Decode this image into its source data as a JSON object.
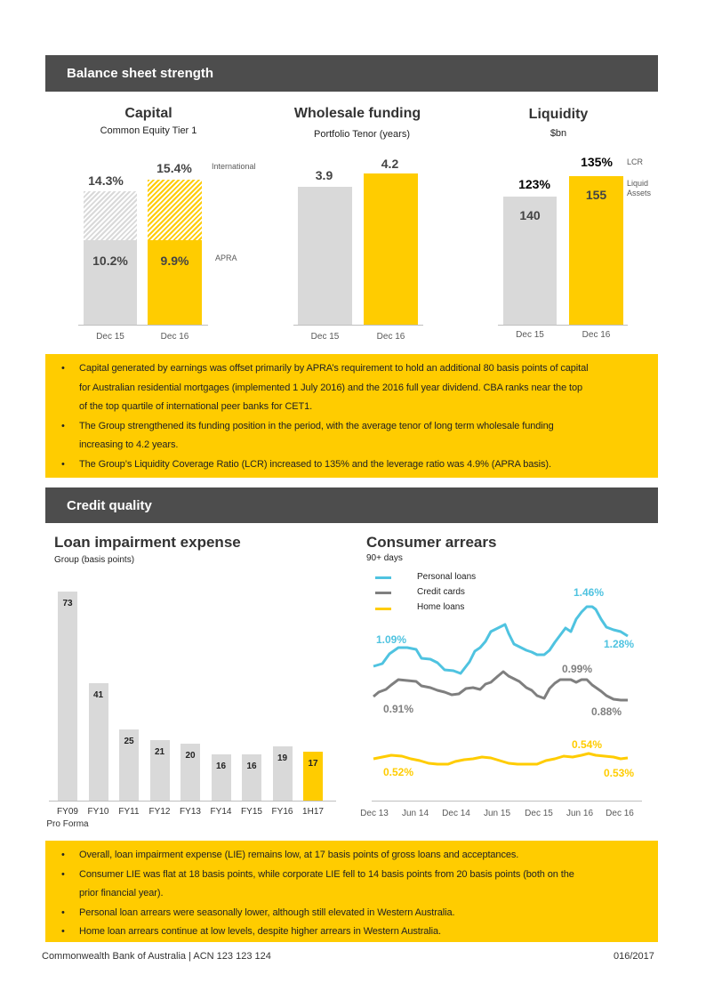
{
  "sections": {
    "balance": "Balance sheet strength",
    "credit": "Credit quality"
  },
  "capital": {
    "title": "Capital",
    "subtitle": "Common Equity Tier 1",
    "dec15_international": "14.3%",
    "dec15_apra": "10.2%",
    "dec16_international": "15.4%",
    "dec16_apra": "9.9%",
    "note_international": "International",
    "note_apra": "APRA",
    "ticks": [
      "Dec 15",
      "Dec 16"
    ]
  },
  "wholesale": {
    "title": "Wholesale funding",
    "subtitle": "Portfolio Tenor (years)",
    "dec15": "3.9",
    "dec16": "4.2",
    "ticks": [
      "Dec 15",
      "Dec 16"
    ]
  },
  "liquidity": {
    "title": "Liquidity",
    "subtitle": "$bn",
    "dec15_lcr": "123%",
    "dec16_lcr": "135%",
    "dec15_assets": "140",
    "dec16_assets": "155",
    "note_lcr": "LCR",
    "note_assets_1": "Liquid",
    "note_assets_2": "Assets",
    "ticks": [
      "Dec 15",
      "Dec 16"
    ]
  },
  "balance_bullets": [
    "Capital generated by earnings was offset primarily by APRA’s  requirement to hold an additional 80 basis points of capital",
    "for Australian residential mortgages (implemented 1 July 2016) and the 2016 full year dividend. CBA ranks near the top",
    "of the top quartile of international peer banks for CET1.",
    "The Group strengthened its funding position in the period, with the average tenor of long term wholesale funding",
    "increasing to 4.2 years.",
    "The Group’s Liquidity Coverage Ratio (LCR) increased to 135% and the leverage ratio was 4.9% (APRA  basis)."
  ],
  "lie": {
    "title": "Loan impairment expense",
    "subtitle": "Group (basis points)",
    "pro_forma": "Pro  Forma",
    "highlight_color": "#ffcc00",
    "base_color": "#d9d9d9"
  },
  "arrears": {
    "title": "Consumer arrears",
    "subtitle": "90+ days",
    "legend": [
      "Personal loans",
      "Credit cards",
      "Home loans"
    ],
    "colors": {
      "personal": "#4fc3e0",
      "credit": "#7f7f7f",
      "home": "#ffcc00"
    },
    "labels": {
      "personal_start": "1.09%",
      "personal_peak": "1.46%",
      "personal_end": "1.28%",
      "credit_start": "0.91%",
      "credit_peak": "0.99%",
      "credit_end": "0.88%",
      "home_start": "0.52%",
      "home_peak": "0.54%",
      "home_end": "0.53%"
    },
    "ticks": [
      "Dec 13",
      "Jun 14",
      "Dec 14",
      "Jun 15",
      "Dec 15",
      "Jun 16",
      "Dec 16"
    ]
  },
  "chart_data": [
    {
      "type": "bar",
      "title": "Loan impairment expense",
      "categories": [
        "FY09",
        "FY10",
        "FY11",
        "FY12",
        "FY13",
        "FY14",
        "FY15",
        "FY16",
        "1H17"
      ],
      "values": [
        73,
        41,
        25,
        21,
        20,
        16,
        16,
        19,
        17
      ],
      "ylim": [
        0,
        73
      ]
    },
    {
      "type": "line",
      "title": "Consumer arrears",
      "x": [
        "Dec 13",
        "Jun 14",
        "Dec 14",
        "Jun 15",
        "Dec 15",
        "Jun 16",
        "Dec 16"
      ],
      "series": [
        {
          "name": "Personal loans",
          "values": [
            1.09,
            1.12,
            1.06,
            1.22,
            1.1,
            1.46,
            1.28
          ]
        },
        {
          "name": "Credit cards",
          "values": [
            0.91,
            0.94,
            0.9,
            0.96,
            0.88,
            0.99,
            0.88
          ]
        },
        {
          "name": "Home loans",
          "values": [
            0.52,
            0.51,
            0.52,
            0.53,
            0.51,
            0.54,
            0.53
          ]
        }
      ]
    }
  ],
  "credit_bullets": [
    "Overall,  loan impairment expense (LIE) remains low, at 17 basis points of gross loans and acceptances.",
    "Consumer LIE was flat at 18 basis points, while corporate LIE fell to 14 basis points from 20 basis points (both on the",
    "prior financial year).",
    "Personal loan arrears were seasonally lower, although still elevated in Western Australia.",
    "Home loan arrears continue at low levels, despite higher arrears in Western Australia."
  ],
  "footer": {
    "left": "Commonwealth Bank of Australia | ACN  123 123 124",
    "right": "016/2017"
  }
}
